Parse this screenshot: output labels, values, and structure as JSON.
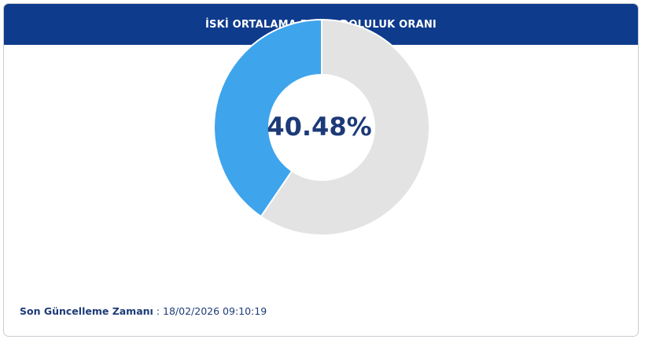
{
  "chart_data": {
    "type": "donut",
    "title": "İSKİ ORTALAMA BARAJ DOLULUK ORANI",
    "values": [
      40.48,
      59.52
    ],
    "value_labels": [
      "40.48%",
      null
    ],
    "colors": [
      "#3ea4ec",
      "#e3e3e3"
    ],
    "direction": "counterclockwise",
    "updated_label": "Son Güncelleme Zamanı",
    "updated_value": ": 18/02/2026 09:10:19"
  }
}
